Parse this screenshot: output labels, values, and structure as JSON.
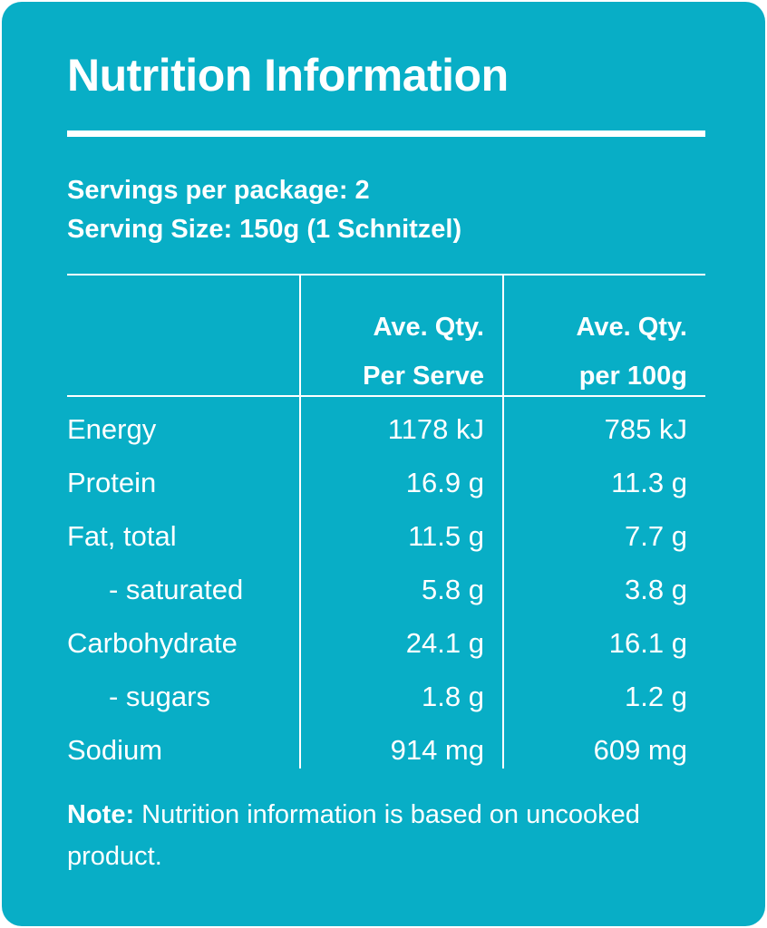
{
  "panel": {
    "title": "Nutrition Information",
    "background_color": "#08AEC6",
    "text_color": "#FFFFFF"
  },
  "servings": {
    "per_package": "Servings per package: 2",
    "serving_size": "Serving Size: 150g (1 Schnitzel)"
  },
  "table": {
    "columns": [
      {
        "line1": "Ave. Qty.",
        "line2": "Per Serve"
      },
      {
        "line1": "Ave. Qty.",
        "line2": "per 100g"
      }
    ],
    "rows": [
      {
        "name": "Energy",
        "per_serve": "1178 kJ",
        "per_100g": "785 kJ",
        "indent": false
      },
      {
        "name": "Protein",
        "per_serve": "16.9 g",
        "per_100g": "11.3 g",
        "indent": false
      },
      {
        "name": "Fat, total",
        "per_serve": "11.5 g",
        "per_100g": "7.7 g",
        "indent": false
      },
      {
        "name": "- saturated",
        "per_serve": "5.8 g",
        "per_100g": "3.8 g",
        "indent": true
      },
      {
        "name": "Carbohydrate",
        "per_serve": "24.1 g",
        "per_100g": "16.1 g",
        "indent": false
      },
      {
        "name": "- sugars",
        "per_serve": "1.8 g",
        "per_100g": "1.2 g",
        "indent": true
      },
      {
        "name": "Sodium",
        "per_serve": "914 mg",
        "per_100g": "609 mg",
        "indent": false
      }
    ]
  },
  "note": {
    "label": "Note:",
    "text": " Nutrition information is based on uncooked product."
  }
}
